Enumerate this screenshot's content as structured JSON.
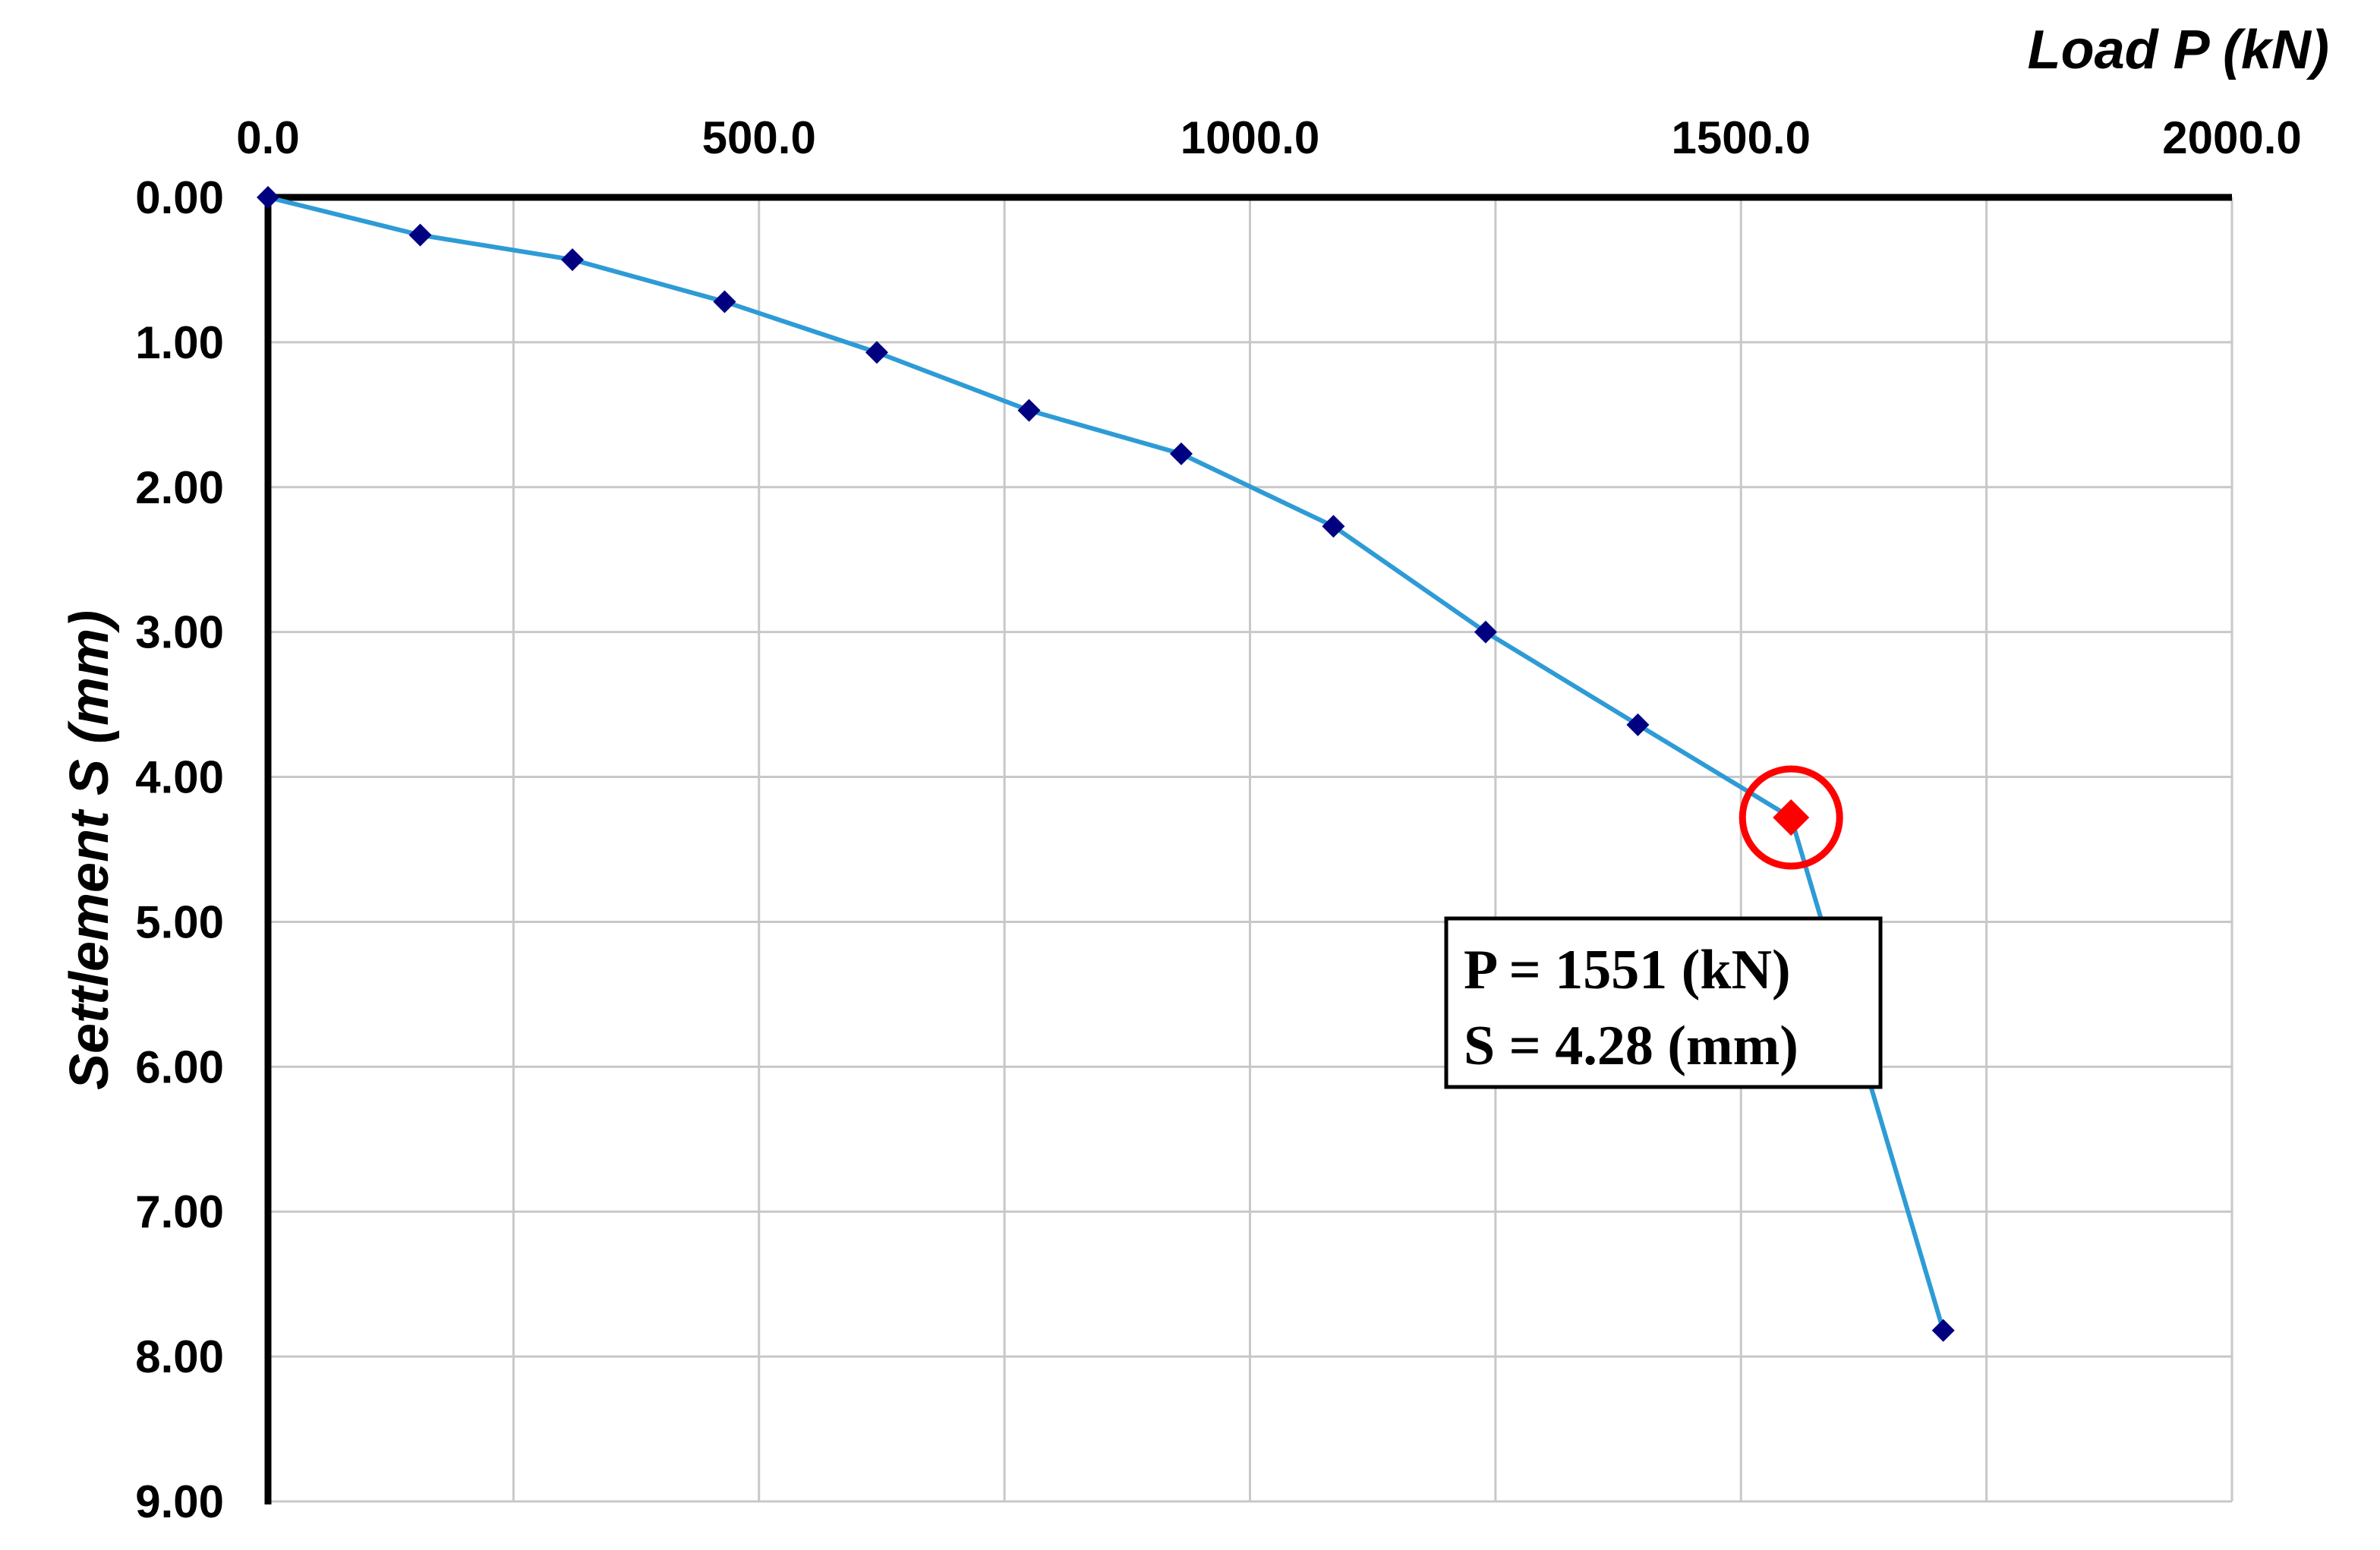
{
  "chart_data": {
    "type": "line",
    "xlabel": "Load P (kN)",
    "ylabel": "Settlement S (mm)",
    "x_axis_position": "top",
    "y_axis_inverted": true,
    "xlim": [
      0,
      2000
    ],
    "ylim": [
      0,
      9
    ],
    "x_major_ticks": [
      0,
      500,
      1000,
      1500,
      2000
    ],
    "x_tick_labels": [
      "0.0",
      "500.0",
      "1000.0",
      "1500.0",
      "2000.0"
    ],
    "x_gridlines": [
      0,
      250,
      500,
      750,
      1000,
      1250,
      1500,
      1750,
      2000
    ],
    "y_ticks": [
      0,
      1,
      2,
      3,
      4,
      5,
      6,
      7,
      8,
      9
    ],
    "y_tick_labels": [
      "0.00",
      "1.00",
      "2.00",
      "3.00",
      "4.00",
      "5.00",
      "6.00",
      "7.00",
      "8.00",
      "9.00"
    ],
    "grid": true,
    "series": [
      {
        "color": "#2e9bd6",
        "marker_color": "#000080",
        "marker": "diamond",
        "x": [
          0,
          155,
          310,
          465,
          620,
          775,
          930,
          1085,
          1240,
          1395,
          1551,
          1706
        ],
        "y": [
          0.0,
          0.26,
          0.43,
          0.72,
          1.07,
          1.47,
          1.77,
          2.27,
          3.0,
          3.64,
          4.28,
          7.82
        ]
      }
    ],
    "highlight": {
      "x": 1551,
      "y": 4.28,
      "marker_color": "#ff0000",
      "circle_color": "#ff0000"
    },
    "annotation": {
      "lines": [
        "P = 1551 (kN)",
        "S = 4.28 (mm)"
      ]
    }
  }
}
